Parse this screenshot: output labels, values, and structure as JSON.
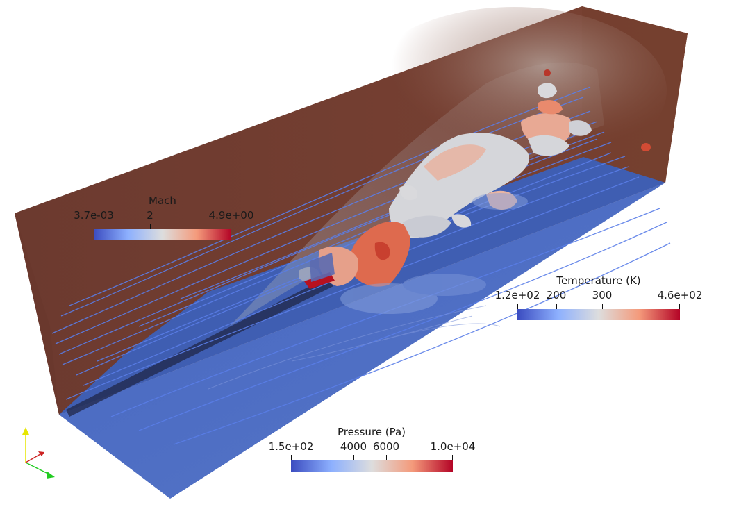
{
  "legends": {
    "mach": {
      "title": "Mach",
      "ticks": [
        "3.7e-03",
        "2",
        "4.9e+00"
      ],
      "tick_fractions": [
        0,
        0.41,
        1
      ]
    },
    "temperature": {
      "title": "Temperature (K)",
      "ticks": [
        "1.2e+02",
        "200",
        "300",
        "4.6e+02"
      ],
      "tick_fractions": [
        0,
        0.24,
        0.52,
        1
      ]
    },
    "pressure": {
      "title": "Pressure (Pa)",
      "ticks": [
        "1.5e+02",
        "4000",
        "6000",
        "1.0e+04"
      ],
      "tick_fractions": [
        0,
        0.39,
        0.59,
        1
      ]
    }
  },
  "colormap": {
    "low": "#3b4cc0",
    "mid": "#dddddd",
    "high": "#b40426"
  },
  "scene_colors": {
    "wall_back": "#6e3a2e",
    "floor": "#4c6fc4",
    "streamline": "#5a7ee8",
    "iso_surface": "#d8d8d8"
  },
  "orientation_axes": {
    "x_color": "#22cc22",
    "y_color": "#e6e600",
    "z_color": "#cc2222"
  }
}
